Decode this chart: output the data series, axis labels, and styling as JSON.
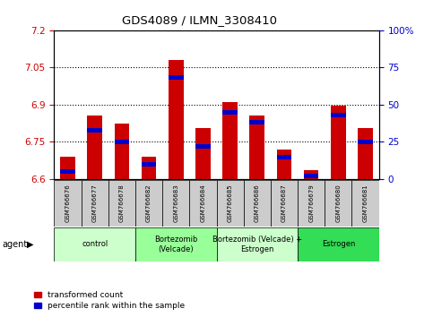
{
  "title": "GDS4089 / ILMN_3308410",
  "samples": [
    "GSM766676",
    "GSM766677",
    "GSM766678",
    "GSM766682",
    "GSM766683",
    "GSM766684",
    "GSM766685",
    "GSM766686",
    "GSM766687",
    "GSM766679",
    "GSM766680",
    "GSM766681"
  ],
  "transformed_count": [
    6.69,
    6.855,
    6.825,
    6.69,
    7.08,
    6.805,
    6.91,
    6.855,
    6.72,
    6.635,
    6.895,
    6.805
  ],
  "percentile_rank": [
    5,
    33,
    25,
    10,
    68,
    22,
    45,
    38,
    15,
    2,
    43,
    25
  ],
  "ylim_left": [
    6.6,
    7.2
  ],
  "ylim_right": [
    0,
    100
  ],
  "yticks_left": [
    6.6,
    6.75,
    6.9,
    7.05,
    7.2
  ],
  "yticks_right": [
    0,
    25,
    50,
    75,
    100
  ],
  "ytick_labels_left": [
    "6.6",
    "6.75",
    "6.9",
    "7.05",
    "7.2"
  ],
  "ytick_labels_right": [
    "0",
    "25",
    "50",
    "75",
    "100%"
  ],
  "bar_color": "#cc0000",
  "blue_color": "#0000cc",
  "bar_bottom": 6.6,
  "agent_groups": [
    {
      "label": "control",
      "start": 0,
      "end": 3,
      "color": "#ccffcc"
    },
    {
      "label": "Bortezomib\n(Velcade)",
      "start": 3,
      "end": 6,
      "color": "#99ff99"
    },
    {
      "label": "Bortezomib (Velcade) +\nEstrogen",
      "start": 6,
      "end": 9,
      "color": "#ccffcc"
    },
    {
      "label": "Estrogen",
      "start": 9,
      "end": 12,
      "color": "#33dd55"
    }
  ],
  "grid_color": "black",
  "tick_color_left": "#cc0000",
  "tick_color_right": "#0000cc",
  "bg_color": "#ffffff",
  "xlabel_agent": "agent",
  "legend_red": "transformed count",
  "legend_blue": "percentile rank within the sample",
  "sample_bg": "#cccccc",
  "blue_bar_height": 0.018
}
